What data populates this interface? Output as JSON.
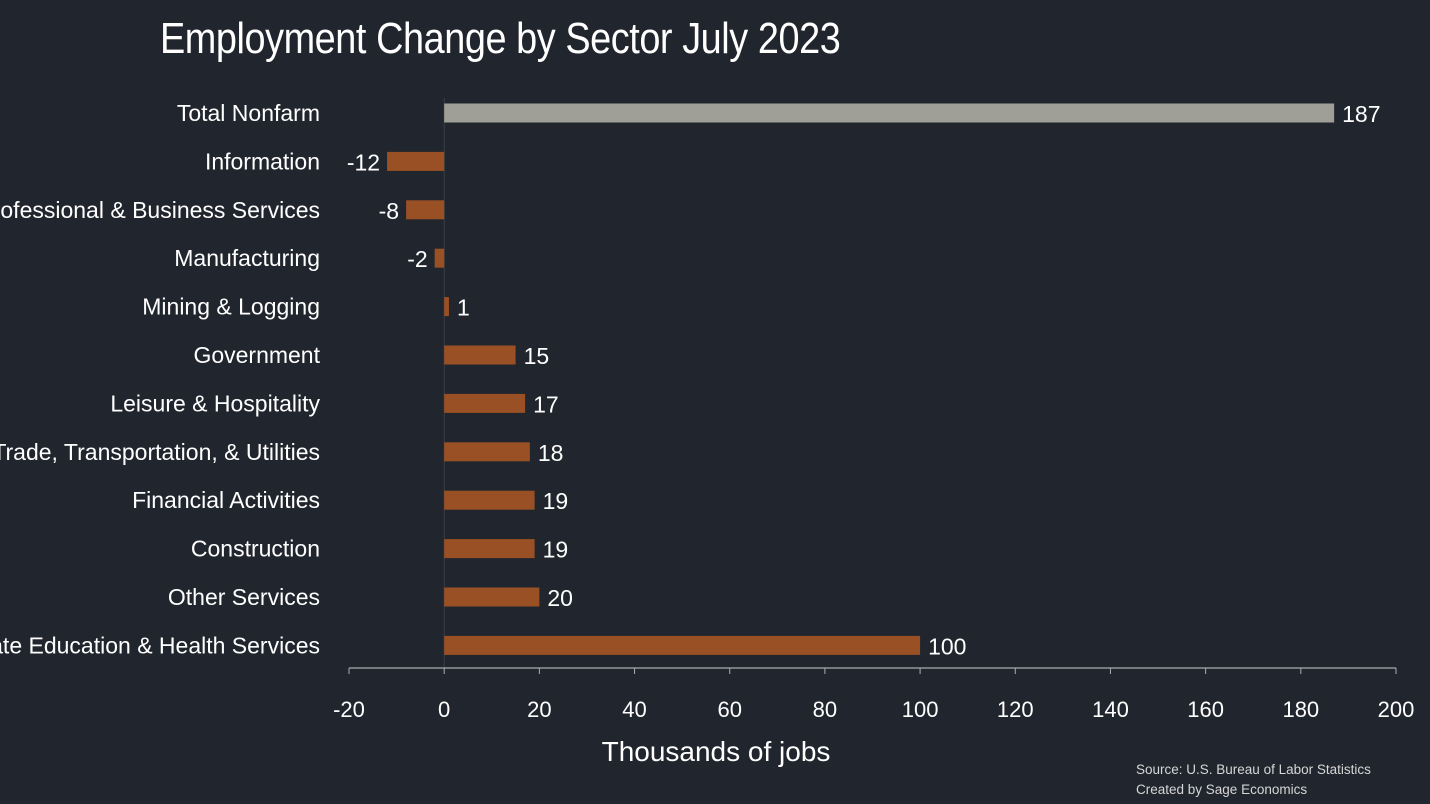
{
  "chart_data": {
    "type": "bar",
    "orientation": "horizontal",
    "title": "Employment Change by Sector July 2023",
    "xlabel": "Thousands of jobs",
    "ylabel": "",
    "xlim": [
      -20,
      200
    ],
    "xticks": [
      -20,
      0,
      20,
      40,
      60,
      80,
      100,
      120,
      140,
      160,
      180,
      200
    ],
    "grid": false,
    "categories": [
      "Total Nonfarm",
      "Information",
      "Professional & Business Services",
      "Manufacturing",
      "Mining & Logging",
      "Government",
      "Leisure & Hospitality",
      "Trade, Transportation, & Utilities",
      "Financial Activities",
      "Construction",
      "Other Services",
      "Private Education & Health Services"
    ],
    "values": [
      187,
      -12,
      -8,
      -2,
      1,
      15,
      17,
      18,
      19,
      19,
      20,
      100
    ],
    "colors": {
      "total": "#a09f97",
      "sector": "#9a5025",
      "axis": "#a9adb3",
      "background": "#21252d"
    }
  },
  "source": {
    "line1": "Source: U.S. Bureau of Labor Statistics",
    "line2": "Created by Sage Economics"
  }
}
